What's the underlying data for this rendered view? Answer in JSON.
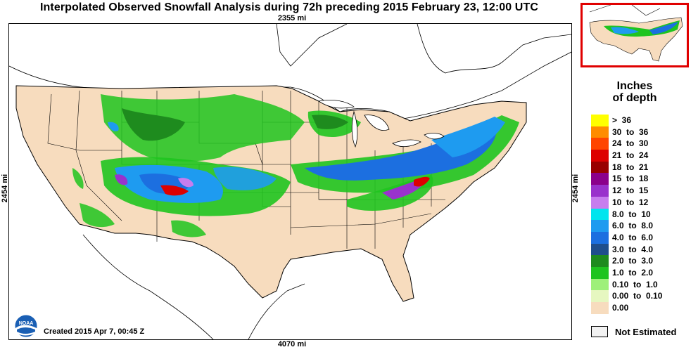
{
  "title": "Interpolated Observed Snowfall Analysis during 72h preceding 2015 February 23, 12:00 UTC",
  "dimensions": {
    "top": "2355 mi",
    "bottom": "4070 mi",
    "left": "2454 mi",
    "right": "2454 mi"
  },
  "created": "Created 2015 Apr 7, 00:45 Z",
  "logo": {
    "name": "noaa-logo",
    "text": "NOAA"
  },
  "legend": {
    "title_line1": "Inches",
    "title_line2": "of depth",
    "rows": [
      {
        "label": ">  36",
        "color": "#ffff00"
      },
      {
        "label": "30  to  36",
        "color": "#ff8c00"
      },
      {
        "label": "24  to  30",
        "color": "#ff4500"
      },
      {
        "label": "21  to  24",
        "color": "#dd0000"
      },
      {
        "label": "18  to  21",
        "color": "#990000"
      },
      {
        "label": "15  to  18",
        "color": "#8b008b"
      },
      {
        "label": "12  to  15",
        "color": "#9932cc"
      },
      {
        "label": "10  to  12",
        "color": "#c77dee"
      },
      {
        "label": "8.0  to  10",
        "color": "#00e5ee"
      },
      {
        "label": "6.0  to  8.0",
        "color": "#1e9bf0"
      },
      {
        "label": "4.0  to  6.0",
        "color": "#1c6fe0"
      },
      {
        "label": "3.0  to  4.0",
        "color": "#1f4e8c"
      },
      {
        "label": "2.0  to  3.0",
        "color": "#1e8b1e"
      },
      {
        "label": "1.0  to  2.0",
        "color": "#1fc41f"
      },
      {
        "label": "0.10  to  1.0",
        "color": "#9ef07a"
      },
      {
        "label": "0.00  to  0.10",
        "color": "#e6f7c0"
      },
      {
        "label": "0.00",
        "color": "#f7dcbe"
      }
    ],
    "not_estimated": "Not Estimated"
  },
  "colors": {
    "land_no_snow": "#f7dcbe",
    "frame_red": "#e00000"
  }
}
